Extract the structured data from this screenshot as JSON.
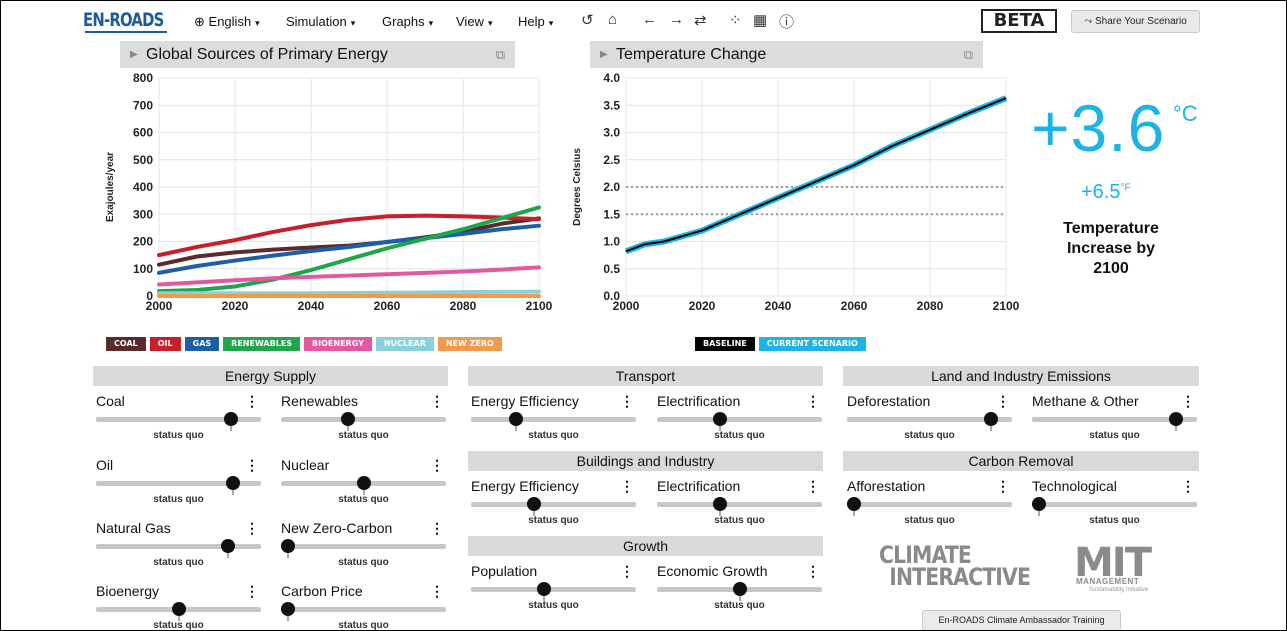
{
  "app": {
    "logo": "EN-ROADS"
  },
  "menu": [
    {
      "label": "English",
      "icon": "globe-icon"
    },
    {
      "label": "Simulation"
    },
    {
      "label": "Graphs"
    },
    {
      "label": "View"
    },
    {
      "label": "Help"
    }
  ],
  "toolbar": {
    "icons": [
      "undo-icon",
      "home-icon",
      "back-icon",
      "forward-icon",
      "reset-icon",
      "compare-icon",
      "table-icon",
      "info-icon"
    ],
    "glyphs": [
      "↺",
      "⌂",
      "←",
      "→",
      "⇄",
      "⁘",
      "▦",
      "ⓘ"
    ]
  },
  "beta_label": "BETA",
  "share_label": "Share Your Scenario",
  "graph1": {
    "title": "Global Sources of Primary Energy",
    "legend": [
      {
        "label": "COAL",
        "color": "#5a2a2c"
      },
      {
        "label": "OIL",
        "color": "#c91f2a"
      },
      {
        "label": "GAS",
        "color": "#1c5ea8"
      },
      {
        "label": "RENEWABLES",
        "color": "#1fa64a"
      },
      {
        "label": "BIOENERGY",
        "color": "#e3599f"
      },
      {
        "label": "NUCLEAR",
        "color": "#88d0dc"
      },
      {
        "label": "NEW ZERO",
        "color": "#f29a4a"
      }
    ]
  },
  "graph2": {
    "title": "Temperature Change",
    "legend": [
      {
        "label": "BASELINE",
        "color": "#000000"
      },
      {
        "label": "CURRENT SCENARIO",
        "color": "#1bb4e4"
      }
    ]
  },
  "chart_data": [
    {
      "type": "line",
      "title": "Global Sources of Primary Energy",
      "ylabel": "Exajoules/year",
      "xlabel": "",
      "xlim": [
        2000,
        2100
      ],
      "ylim": [
        0,
        800
      ],
      "xticks": [
        2000,
        2020,
        2040,
        2060,
        2080,
        2100
      ],
      "yticks": [
        0,
        100,
        200,
        300,
        400,
        500,
        600,
        700,
        800
      ],
      "grid": true,
      "x": [
        2000,
        2010,
        2020,
        2030,
        2040,
        2050,
        2060,
        2070,
        2080,
        2090,
        2100
      ],
      "series": [
        {
          "name": "COAL",
          "color": "#5a2a2c",
          "values": [
            115,
            145,
            160,
            170,
            178,
            185,
            198,
            215,
            235,
            265,
            285
          ]
        },
        {
          "name": "OIL",
          "color": "#c91f2a",
          "values": [
            150,
            180,
            205,
            235,
            260,
            280,
            292,
            295,
            292,
            288,
            282
          ]
        },
        {
          "name": "GAS",
          "color": "#1c5ea8",
          "values": [
            85,
            110,
            130,
            148,
            165,
            180,
            198,
            212,
            228,
            245,
            258
          ]
        },
        {
          "name": "RENEWABLES",
          "color": "#1fa64a",
          "values": [
            18,
            22,
            35,
            60,
            95,
            135,
            175,
            210,
            245,
            285,
            325
          ]
        },
        {
          "name": "BIOENERGY",
          "color": "#e3599f",
          "values": [
            42,
            50,
            58,
            65,
            70,
            75,
            80,
            85,
            90,
            97,
            105
          ]
        },
        {
          "name": "NUCLEAR",
          "color": "#88d0dc",
          "values": [
            10,
            10,
            10,
            10,
            10,
            11,
            12,
            13,
            14,
            15,
            16
          ]
        },
        {
          "name": "NEW ZERO",
          "color": "#f29a4a",
          "values": [
            0,
            0,
            0,
            0,
            0,
            0,
            0,
            0,
            0,
            0,
            0
          ]
        }
      ]
    },
    {
      "type": "line",
      "title": "Temperature Change",
      "ylabel": "Degrees Celsius",
      "xlabel": "",
      "xlim": [
        2000,
        2100
      ],
      "ylim": [
        0,
        4
      ],
      "xticks": [
        2000,
        2020,
        2040,
        2060,
        2080,
        2100
      ],
      "yticks": [
        "0.0",
        "0.5",
        "1.0",
        "1.5",
        "2.0",
        "2.5",
        "3.0",
        "3.5",
        "4.0"
      ],
      "reference_lines": [
        1.5,
        2.0
      ],
      "grid": true,
      "x": [
        2000,
        2005,
        2010,
        2020,
        2030,
        2040,
        2050,
        2060,
        2070,
        2080,
        2090,
        2100
      ],
      "series": [
        {
          "name": "BASELINE",
          "color": "#000000",
          "values": [
            0.82,
            0.95,
            1.0,
            1.2,
            1.5,
            1.8,
            2.1,
            2.4,
            2.75,
            3.05,
            3.35,
            3.63
          ]
        },
        {
          "name": "CURRENT SCENARIO",
          "color": "#1bb4e4",
          "values": [
            0.82,
            0.95,
            1.0,
            1.2,
            1.5,
            1.8,
            2.1,
            2.4,
            2.75,
            3.05,
            3.35,
            3.63
          ]
        }
      ]
    }
  ],
  "temperature": {
    "celsius": "+3.6",
    "c_unit": "°C",
    "fahrenheit": "+6.5",
    "f_unit": "°F",
    "caption": "Temperature Increase by 2100"
  },
  "sections": {
    "energy_supply": "Energy Supply",
    "transport": "Transport",
    "buildings": "Buildings and Industry",
    "growth": "Growth",
    "land": "Land and Industry Emissions",
    "carbon": "Carbon Removal"
  },
  "sliders": {
    "coal": {
      "label": "Coal",
      "status": "status quo",
      "value": 0.85,
      "default": 0.85
    },
    "renewables": {
      "label": "Renewables",
      "status": "status quo",
      "value": 0.4,
      "default": 0.4
    },
    "oil": {
      "label": "Oil",
      "status": "status quo",
      "value": 0.86,
      "default": 0.86
    },
    "nuclear": {
      "label": "Nuclear",
      "status": "status quo",
      "value": 0.5,
      "default": 0.5
    },
    "natural_gas": {
      "label": "Natural Gas",
      "status": "status quo",
      "value": 0.83,
      "default": 0.83
    },
    "new_zero": {
      "label": "New Zero-Carbon",
      "status": "status quo",
      "value": 0.0,
      "default": 0.0
    },
    "bioenergy": {
      "label": "Bioenergy",
      "status": "status quo",
      "value": 0.5,
      "default": 0.5
    },
    "carbon_price": {
      "label": "Carbon Price",
      "status": "status quo",
      "value": 0.0,
      "default": 0.0
    },
    "tr_efficiency": {
      "label": "Energy Efficiency",
      "status": "status quo",
      "value": 0.25,
      "default": 0.25
    },
    "tr_electrification": {
      "label": "Electrification",
      "status": "status quo",
      "value": 0.37,
      "default": 0.37
    },
    "bi_efficiency": {
      "label": "Energy Efficiency",
      "status": "status quo",
      "value": 0.37,
      "default": 0.37
    },
    "bi_electrification": {
      "label": "Electrification",
      "status": "status quo",
      "value": 0.37,
      "default": 0.37
    },
    "population": {
      "label": "Population",
      "status": "status quo",
      "value": 0.44,
      "default": 0.44
    },
    "economic_growth": {
      "label": "Economic Growth",
      "status": "status quo",
      "value": 0.5,
      "default": 0.5
    },
    "deforestation": {
      "label": "Deforestation",
      "status": "status quo",
      "value": 0.91,
      "default": 0.91
    },
    "methane": {
      "label": "Methane & Other",
      "status": "status quo",
      "value": 0.91,
      "default": 0.91
    },
    "afforestation": {
      "label": "Afforestation",
      "status": "status quo",
      "value": 0.0,
      "default": 0.0
    },
    "technological": {
      "label": "Technological",
      "status": "status quo",
      "value": 0.0,
      "default": 0.0
    }
  },
  "logos": {
    "ci_line1": "CLIMATE",
    "ci_line2": "INTERACTIVE",
    "mit": "MIT",
    "mit_sub": "MANAGEMENT",
    "mit_sub2": "Sustainability Initiative"
  },
  "training_label": "En-ROADS Climate Ambassador Training"
}
